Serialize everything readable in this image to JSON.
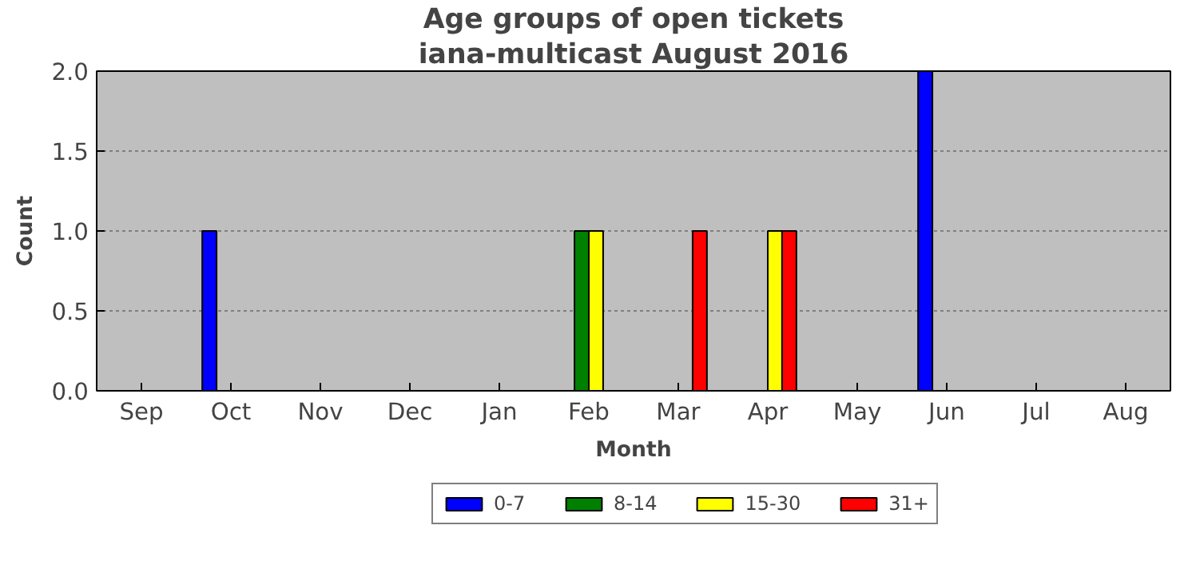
{
  "chart_data": {
    "type": "bar",
    "title": "Age groups of open tickets",
    "subtitle": "iana-multicast August 2016",
    "xlabel": "Month",
    "ylabel": "Count",
    "categories": [
      "Sep",
      "Oct",
      "Nov",
      "Dec",
      "Jan",
      "Feb",
      "Mar",
      "Apr",
      "May",
      "Jun",
      "Jul",
      "Aug"
    ],
    "series": [
      {
        "name": "0-7",
        "color": "#0000ff",
        "values": [
          0,
          1,
          0,
          0,
          0,
          0,
          0,
          0,
          0,
          2,
          0,
          0
        ]
      },
      {
        "name": "8-14",
        "color": "#008000",
        "values": [
          0,
          0,
          0,
          0,
          0,
          1,
          0,
          0,
          0,
          0,
          0,
          0
        ]
      },
      {
        "name": "15-30",
        "color": "#ffff00",
        "values": [
          0,
          0,
          0,
          0,
          0,
          1,
          0,
          1,
          0,
          0,
          0,
          0
        ]
      },
      {
        "name": "31+",
        "color": "#ff0000",
        "values": [
          0,
          0,
          0,
          0,
          0,
          0,
          1,
          1,
          0,
          0,
          0,
          0
        ]
      }
    ],
    "ylim": [
      0,
      2.0
    ],
    "yticks": [
      {
        "value": 0,
        "label": "0.0"
      },
      {
        "value": 0.5,
        "label": "0.5"
      },
      {
        "value": 1,
        "label": "1.0"
      },
      {
        "value": 1.5,
        "label": "1.5"
      },
      {
        "value": 2,
        "label": "2.0"
      }
    ],
    "grid": "y",
    "legend": "bottom"
  }
}
